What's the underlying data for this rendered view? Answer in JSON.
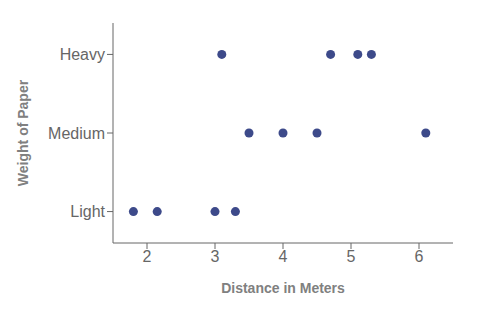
{
  "chart_data": {
    "type": "scatter",
    "xlabel": "Distance in Meters",
    "ylabel": "Weight of Paper",
    "x": [
      1.8,
      2.15,
      3.0,
      3.3,
      3.5,
      4.0,
      4.5,
      6.1,
      3.1,
      4.7,
      5.1,
      5.3
    ],
    "values": [
      1,
      1,
      1,
      1,
      2,
      2,
      2,
      2,
      3,
      3,
      3,
      3
    ],
    "color": "#3d4a8a",
    "xlim": [
      1.5,
      6.5
    ],
    "ylim": [
      0.6,
      3.4
    ],
    "xticks": [
      2,
      3,
      4,
      5,
      6
    ],
    "yticks": [
      {
        "value": 1,
        "label": "Light"
      },
      {
        "value": 2,
        "label": "Medium"
      },
      {
        "value": 3,
        "label": "Heavy"
      }
    ],
    "grid": false
  }
}
